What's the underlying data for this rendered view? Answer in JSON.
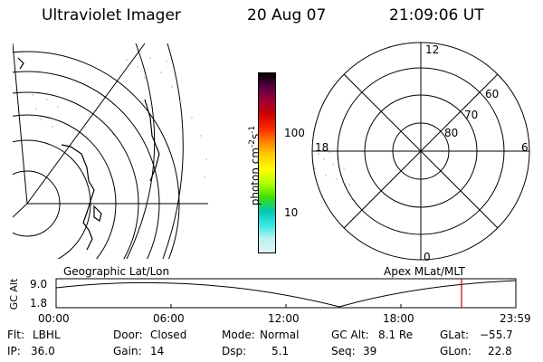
{
  "header": {
    "instrument": "Ultraviolet Imager",
    "date": "20 Aug 07",
    "time": "21:09:06 UT"
  },
  "colorbar": {
    "axis_label": "photon cm",
    "exp1": "-2",
    "mid": "s",
    "exp2": "-1",
    "ticks": [
      "100",
      "10"
    ],
    "colors": [
      "#000000",
      "#5a0046",
      "#9d0033",
      "#cf0000",
      "#ff2a00",
      "#ff7f00",
      "#ffd000",
      "#ffff00",
      "#a8ff00",
      "#3ee000",
      "#00c8b4",
      "#38e8e8",
      "#b8f0f0",
      "#e0f4f4"
    ]
  },
  "geo_panel": {
    "label": "Geographic Lat/Lon"
  },
  "apex_panel": {
    "label": "Apex MLat/MLT",
    "mlt": [
      "12",
      "18",
      "6",
      "0"
    ],
    "lat": [
      "60",
      "70",
      "80"
    ]
  },
  "orbit": {
    "ylabel": "GC Alt",
    "yticks": [
      "9.0",
      "1.8"
    ],
    "xticks": [
      "00:00",
      "06:00",
      "12:00",
      "18:00",
      "23:59"
    ],
    "marker_color": "#cc0000",
    "current_time": "21:09"
  },
  "status": {
    "flt_label": "Flt:",
    "flt": "LBHL",
    "ip_label": "IP:",
    "ip": "36.0",
    "door_label": "Door:",
    "door": "Closed",
    "gain_label": "Gain:",
    "gain": "14",
    "mode_label": "Mode:",
    "mode": "Normal",
    "dsp_label": "Dsp:",
    "dsp": "5.1",
    "gcalt_label": "GC Alt:",
    "gcalt": "8.1 Re",
    "seq_label": "Seq:",
    "seq": "39",
    "glat_label": "GLat:",
    "glat": "−55.7",
    "glon_label": "GLon:",
    "glon": "22.8"
  }
}
